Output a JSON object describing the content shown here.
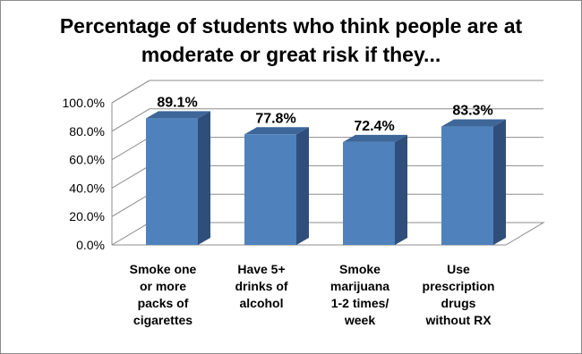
{
  "chart_data": {
    "type": "bar",
    "title_lines": [
      "Percentage of students who think people are at",
      "moderate or great risk if they..."
    ],
    "categories": [
      [
        "Smoke one",
        "or more",
        "packs of",
        "cigarettes"
      ],
      [
        "Have 5+",
        "drinks of",
        "alcohol"
      ],
      [
        "Smoke",
        "marijuana",
        "1-2 times/",
        "week"
      ],
      [
        "Use",
        "prescription",
        "drugs",
        "without RX"
      ]
    ],
    "values": [
      89.1,
      77.8,
      72.4,
      83.3
    ],
    "data_labels": [
      "89.1%",
      "77.8%",
      "72.4%",
      "83.3%"
    ],
    "y_ticks": [
      "0.0%",
      "20.0%",
      "40.0%",
      "60.0%",
      "80.0%",
      "100.0%"
    ],
    "ylim": [
      0,
      100
    ],
    "grid": true,
    "style": "3d-column",
    "colors": {
      "bar_front": "#4f81bd",
      "bar_side": "#2f4f7a",
      "bar_top": "#3d6699",
      "grid": "#8c8c8c"
    }
  }
}
